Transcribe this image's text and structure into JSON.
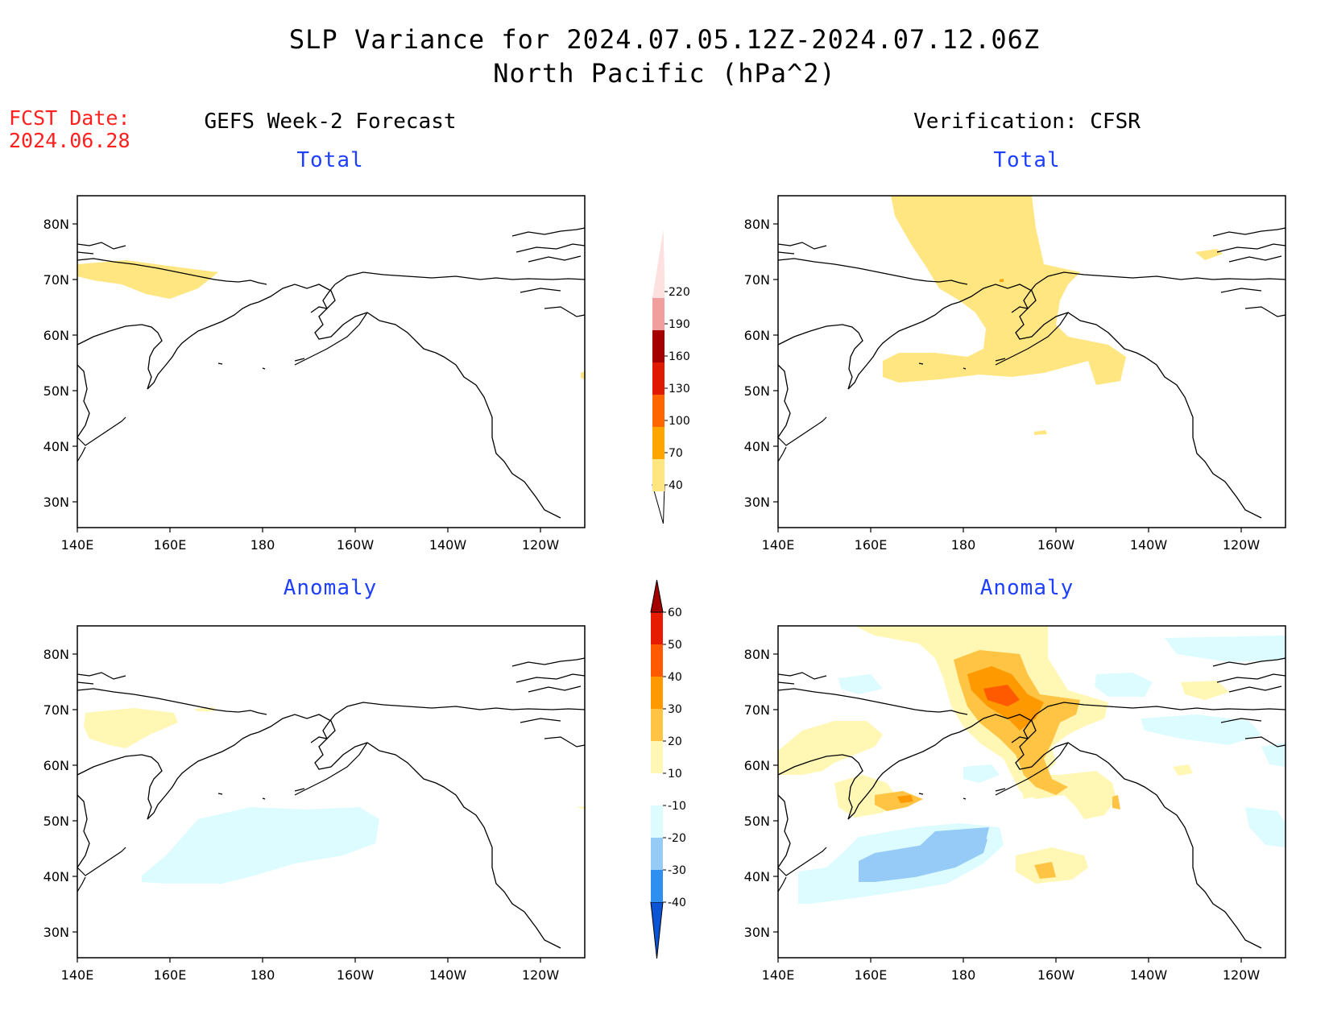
{
  "header": {
    "title_line1": "SLP Variance for 2024.07.05.12Z-2024.07.12.06Z",
    "title_line2": "North Pacific (hPa^2)"
  },
  "fcst": {
    "label": "FCST Date:",
    "date": "2024.06.28"
  },
  "columns": {
    "left_title": "GEFS Week-2 Forecast",
    "right_title": "Verification: CFSR"
  },
  "panels": {
    "top_left_title": "Total",
    "top_right_title": "Total",
    "bottom_left_title": "Anomaly",
    "bottom_right_title": "Anomaly"
  },
  "map_axes": {
    "lon_labels": [
      "140E",
      "160E",
      "180",
      "160W",
      "140W",
      "120W"
    ],
    "lat_labels": [
      "80N",
      "70N",
      "60N",
      "50N",
      "40N",
      "30N"
    ]
  },
  "colorbar_total": {
    "labels": [
      "40",
      "70",
      "100",
      "130",
      "160",
      "190",
      "220"
    ],
    "colors": [
      "#ffe680",
      "#ffa500",
      "#ff6600",
      "#e01a00",
      "#a50000",
      "#f09e9e",
      "#fde0e0"
    ]
  },
  "colorbar_anomaly": {
    "labels": [
      "-40",
      "-30",
      "-20",
      "-10",
      "10",
      "20",
      "30",
      "40",
      "50",
      "60"
    ],
    "colors": [
      "#0a55d6",
      "#2f8ff0",
      "#96cbf7",
      "#dcfcff",
      "#ffffff",
      "#fff7b3",
      "#ffc444",
      "#ff9900",
      "#ff5a00",
      "#e61b00",
      "#a50000"
    ]
  }
}
